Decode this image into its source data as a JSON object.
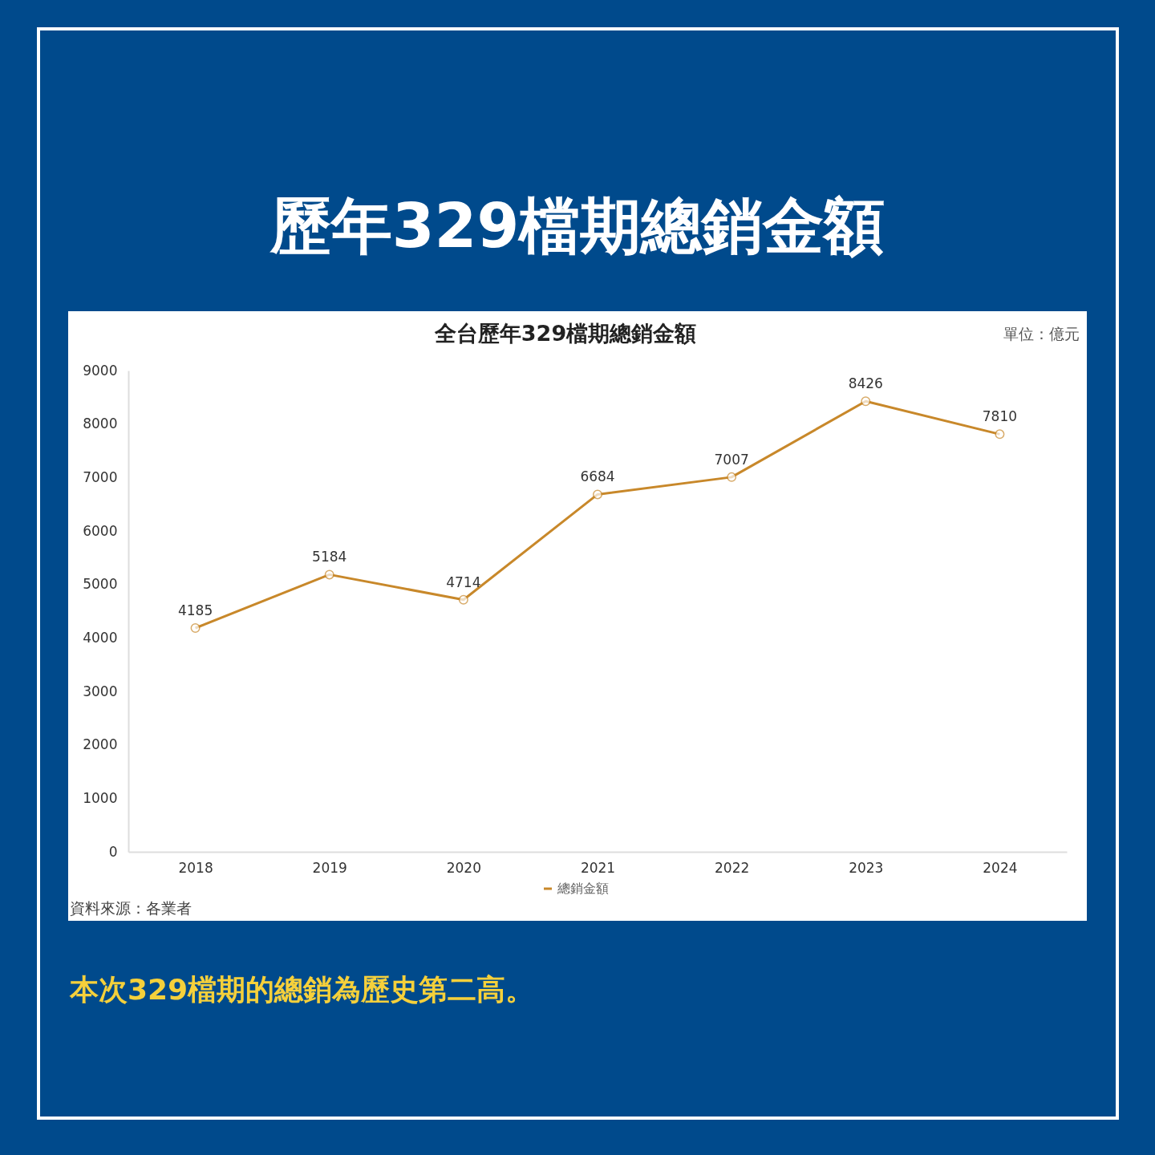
{
  "chart_data": {
    "type": "line",
    "title": "歷年329檔期總銷金額",
    "subtitle": "全台歷年329檔期總銷金額",
    "categories": [
      "2018",
      "2019",
      "2020",
      "2021",
      "2022",
      "2023",
      "2024"
    ],
    "series": [
      {
        "name": "總銷金額",
        "color": "#c8882a",
        "values": [
          4185,
          5184,
          4714,
          6684,
          7007,
          8426,
          7810
        ]
      }
    ],
    "ylim": [
      0,
      9000
    ],
    "yticks": [
      0,
      1000,
      2000,
      3000,
      4000,
      5000,
      6000,
      7000,
      8000,
      9000
    ],
    "grid": false,
    "legend": "bottom",
    "marker": "circle",
    "line_style": "solid",
    "data_labels": true,
    "annotations": [
      "單位：億元",
      "資料來源：各業者",
      "本次329檔期的總銷為歷史第二高。"
    ]
  }
}
